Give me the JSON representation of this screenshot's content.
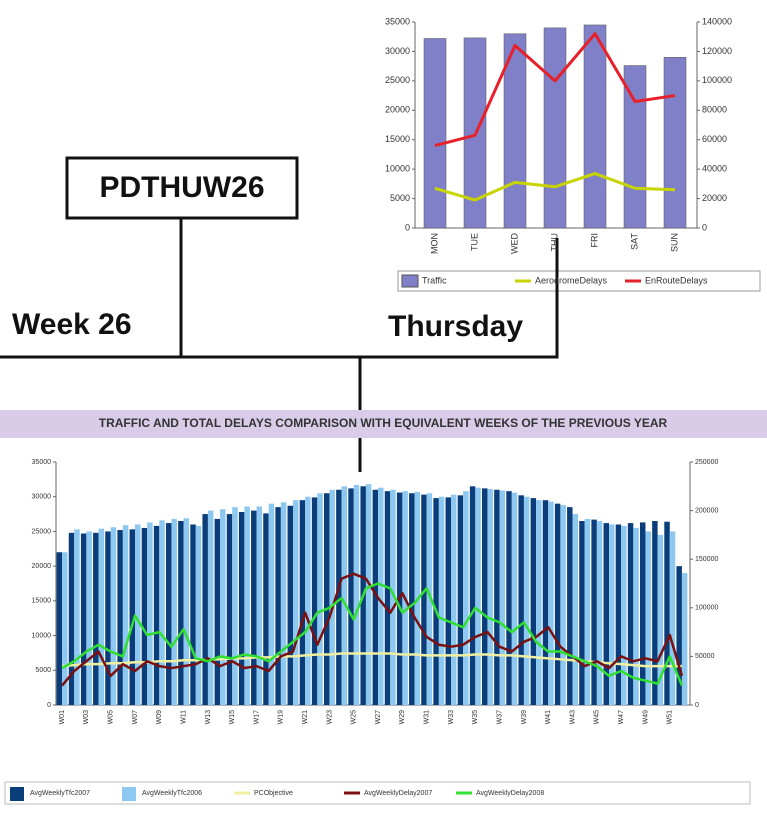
{
  "labels": {
    "code": "PDTHUW26",
    "week": "Week 26",
    "day": "Thursday"
  },
  "chart_data": [
    {
      "type": "combo",
      "categories": [
        "MON",
        "TUE",
        "WED",
        "THU",
        "FRI",
        "SAT",
        "SUN"
      ],
      "ylim": [
        0,
        35000
      ],
      "yticks": [
        0,
        5000,
        10000,
        15000,
        20000,
        25000,
        30000,
        35000
      ],
      "y2lim": [
        0,
        140000
      ],
      "y2ticks": [
        0,
        20000,
        40000,
        60000,
        80000,
        100000,
        120000,
        140000
      ],
      "series": [
        {
          "name": "Traffic",
          "color": "#8080c8",
          "values": [
            32200,
            32300,
            33000,
            34000,
            34500,
            27600,
            29000
          ]
        },
        {
          "name": "AerodromeDelays",
          "color": "#c8d400",
          "axis": "y2",
          "values": [
            27000,
            19000,
            31000,
            28000,
            37000,
            27000,
            26000
          ]
        },
        {
          "name": "EnRouteDelays",
          "color": "#e8202a",
          "axis": "y2",
          "values": [
            56000,
            63000,
            124000,
            100000,
            132000,
            86000,
            90000
          ]
        }
      ]
    },
    {
      "type": "combo",
      "title": "TRAFFIC AND TOTAL DELAYS COMPARISON WITH EQUIVALENT WEEKS OF THE PREVIOUS YEAR",
      "categories": [
        "W01",
        null,
        "W03",
        null,
        "W05",
        null,
        "W07",
        null,
        "W09",
        null,
        "W11",
        null,
        "W13",
        null,
        "W15",
        null,
        "W17",
        null,
        "W19",
        null,
        "W21",
        null,
        "W23",
        null,
        "W25",
        null,
        "W27",
        null,
        "W29",
        null,
        "W31",
        null,
        "W33",
        null,
        "W35",
        null,
        "W37",
        null,
        "W39",
        null,
        "W41",
        null,
        "W43",
        null,
        "W45",
        null,
        "W47",
        null,
        "W49",
        null,
        "W51",
        null
      ],
      "ylim": [
        0,
        35000
      ],
      "yticks": [
        0,
        5000,
        10000,
        15000,
        20000,
        25000,
        30000,
        35000
      ],
      "y2lim": [
        0,
        250000
      ],
      "y2ticks": [
        0,
        50000,
        100000,
        150000,
        200000,
        250000
      ],
      "series": [
        {
          "name": "AvgWeeklyTfc2007",
          "color": "#0a3d7a",
          "values": [
            22000,
            24800,
            24700,
            24800,
            25000,
            25200,
            25300,
            25500,
            25800,
            26200,
            26500,
            26000,
            27500,
            26800,
            27500,
            27800,
            28000,
            27600,
            28500,
            28700,
            29500,
            29900,
            30500,
            31000,
            31200,
            31500,
            31000,
            30800,
            30600,
            30500,
            30300,
            29800,
            29900,
            30200,
            31500,
            31200,
            31000,
            30800,
            30200,
            29800,
            29500,
            29000,
            28500,
            26500,
            26700,
            26200,
            26000,
            26200,
            26300,
            26500,
            26400,
            20000
          ]
        },
        {
          "name": "AvgWeeklyTfc2006",
          "color": "#8cc8f0",
          "values": [
            22000,
            25300,
            25000,
            25400,
            25600,
            25900,
            26000,
            26300,
            26600,
            26800,
            26900,
            25800,
            28000,
            28200,
            28500,
            28600,
            28600,
            29000,
            29200,
            29500,
            30000,
            30500,
            31000,
            31500,
            31700,
            31800,
            31300,
            31000,
            30800,
            30700,
            30500,
            30000,
            30300,
            30800,
            31300,
            31100,
            30900,
            30600,
            30000,
            29500,
            29300,
            28800,
            27500,
            26800,
            26500,
            26000,
            25800,
            25500,
            25000,
            24500,
            25000,
            19000
          ]
        },
        {
          "name": "PCObjective",
          "color": "#f0f0a0",
          "axis": "y2",
          "values": [
            40000,
            41000,
            42000,
            42000,
            43000,
            43000,
            44000,
            44000,
            45000,
            45000,
            46000,
            46000,
            47000,
            47000,
            48000,
            48000,
            49000,
            49000,
            50000,
            50000,
            51000,
            52000,
            52000,
            53000,
            53000,
            53000,
            53000,
            53000,
            52000,
            52000,
            51000,
            51000,
            51000,
            51000,
            52000,
            52000,
            51000,
            51000,
            50000,
            49000,
            48000,
            47000,
            46000,
            45000,
            44000,
            43000,
            42000,
            41000,
            40000,
            40000,
            40000,
            40000
          ]
        },
        {
          "name": "AvgWeeklyDelay2007",
          "color": "#7a1010",
          "axis": "y2",
          "values": [
            20000,
            35000,
            45000,
            55000,
            30000,
            42000,
            35000,
            45000,
            40000,
            38000,
            40000,
            42000,
            48000,
            40000,
            45000,
            38000,
            40000,
            35000,
            50000,
            55000,
            95000,
            62000,
            90000,
            130000,
            135000,
            130000,
            110000,
            95000,
            115000,
            90000,
            70000,
            62000,
            60000,
            62000,
            70000,
            75000,
            60000,
            55000,
            65000,
            70000,
            80000,
            60000,
            50000,
            40000,
            45000,
            38000,
            50000,
            45000,
            48000,
            45000,
            72000,
            30000
          ]
        },
        {
          "name": "AvgWeeklyDelay2008",
          "color": "#30e030",
          "axis": "y2",
          "values": [
            38000,
            45000,
            55000,
            62000,
            55000,
            50000,
            92000,
            72000,
            75000,
            60000,
            78000,
            48000,
            45000,
            50000,
            48000,
            52000,
            50000,
            45000,
            55000,
            65000,
            75000,
            95000,
            100000,
            110000,
            88000,
            120000,
            125000,
            120000,
            95000,
            105000,
            120000,
            90000,
            85000,
            80000,
            100000,
            90000,
            85000,
            75000,
            85000,
            65000,
            55000,
            55000,
            50000,
            45000,
            40000,
            30000,
            35000,
            28000,
            25000,
            22000,
            50000,
            20000
          ]
        }
      ]
    }
  ]
}
